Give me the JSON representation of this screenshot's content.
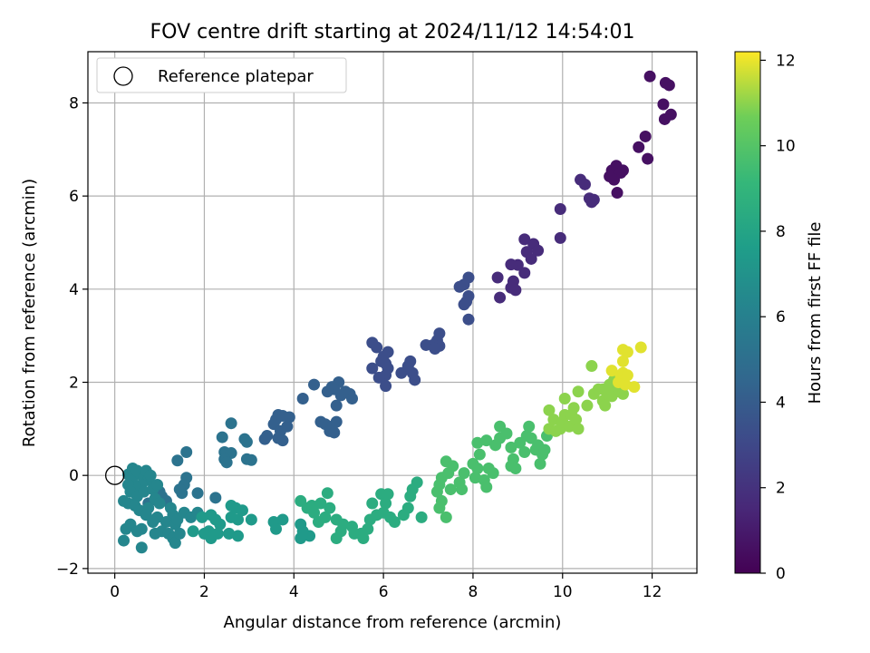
{
  "chart_data": {
    "type": "scatter",
    "title": "FOV centre drift starting at 2024/11/12 14:54:01",
    "xlabel": "Angular distance from reference (arcmin)",
    "ylabel": "Rotation from reference (arcmin)",
    "xlim": [
      -0.6,
      13.0
    ],
    "ylim": [
      -2.1,
      9.1
    ],
    "xticks": [
      0,
      2,
      4,
      6,
      8,
      10,
      12
    ],
    "yticks": [
      -2,
      0,
      2,
      4,
      6,
      8
    ],
    "grid": true,
    "legend": {
      "position": "top-left",
      "entries": [
        "Reference platepar"
      ]
    },
    "reference_point": {
      "x": 0,
      "y": 0
    },
    "colorbar": {
      "label": "Hours from first FF file",
      "colormap": "viridis",
      "range": [
        0,
        12.2
      ],
      "ticks": [
        0,
        2,
        4,
        6,
        8,
        10,
        12
      ]
    },
    "series": [
      {
        "points": [
          [
            11.95,
            8.57
          ],
          [
            12.3,
            8.43
          ],
          [
            12.38,
            8.38
          ],
          [
            12.25,
            7.97
          ],
          [
            12.42,
            7.75
          ],
          [
            12.28,
            7.65
          ],
          [
            11.85,
            7.28
          ],
          [
            11.7,
            7.05
          ],
          [
            11.9,
            6.8
          ],
          [
            11.1,
            6.55
          ],
          [
            11.2,
            6.65
          ],
          [
            11.3,
            6.5
          ],
          [
            11.15,
            6.35
          ],
          [
            11.05,
            6.42
          ],
          [
            11.35,
            6.55
          ],
          [
            11.22,
            6.07
          ]
        ],
        "hours": 0.6
      },
      {
        "points": [
          [
            10.4,
            6.35
          ],
          [
            10.5,
            6.25
          ],
          [
            10.6,
            5.95
          ],
          [
            10.7,
            5.92
          ],
          [
            10.65,
            5.87
          ],
          [
            9.95,
            5.72
          ],
          [
            9.95,
            5.1
          ],
          [
            9.15,
            5.07
          ],
          [
            9.35,
            4.97
          ],
          [
            9.2,
            4.8
          ],
          [
            9.45,
            4.83
          ],
          [
            9.3,
            4.65
          ],
          [
            9.0,
            4.52
          ],
          [
            8.85,
            4.53
          ],
          [
            9.15,
            4.35
          ],
          [
            8.55,
            4.25
          ],
          [
            8.9,
            4.17
          ],
          [
            8.85,
            4.03
          ],
          [
            8.95,
            3.98
          ],
          [
            8.6,
            3.82
          ]
        ],
        "hours": 1.7
      },
      {
        "points": [
          [
            7.9,
            4.25
          ],
          [
            7.8,
            4.1
          ],
          [
            7.7,
            4.05
          ],
          [
            7.9,
            3.85
          ],
          [
            7.85,
            3.73
          ],
          [
            7.8,
            3.67
          ],
          [
            7.9,
            3.35
          ],
          [
            7.25,
            3.05
          ],
          [
            7.2,
            2.9
          ],
          [
            7.1,
            2.8
          ],
          [
            7.25,
            2.78
          ],
          [
            6.95,
            2.8
          ],
          [
            7.15,
            2.72
          ],
          [
            6.1,
            2.65
          ],
          [
            5.75,
            2.85
          ],
          [
            5.85,
            2.75
          ],
          [
            6.0,
            2.55
          ],
          [
            6.05,
            2.4
          ],
          [
            5.95,
            2.45
          ],
          [
            5.75,
            2.3
          ],
          [
            6.1,
            2.3
          ],
          [
            6.4,
            2.2
          ],
          [
            6.55,
            2.35
          ],
          [
            6.6,
            2.45
          ],
          [
            6.65,
            2.2
          ],
          [
            6.7,
            2.05
          ],
          [
            6.05,
            2.15
          ],
          [
            6.05,
            1.92
          ],
          [
            5.9,
            2.1
          ]
        ],
        "hours": 3.3
      },
      {
        "points": [
          [
            5.0,
            2.0
          ],
          [
            4.85,
            1.9
          ],
          [
            4.9,
            1.85
          ],
          [
            5.15,
            1.8
          ],
          [
            4.75,
            1.8
          ],
          [
            5.05,
            1.72
          ],
          [
            5.25,
            1.75
          ],
          [
            5.3,
            1.65
          ],
          [
            4.45,
            1.95
          ],
          [
            4.2,
            1.65
          ],
          [
            4.95,
            1.5
          ],
          [
            4.6,
            1.15
          ],
          [
            4.7,
            1.1
          ],
          [
            4.85,
            1.05
          ],
          [
            4.95,
            1.15
          ],
          [
            4.8,
            0.95
          ],
          [
            4.9,
            0.92
          ],
          [
            3.9,
            1.25
          ],
          [
            3.75,
            1.28
          ],
          [
            3.65,
            1.3
          ],
          [
            3.6,
            1.2
          ],
          [
            3.55,
            1.1
          ],
          [
            3.85,
            1.05
          ],
          [
            3.7,
            0.95
          ],
          [
            3.4,
            0.85
          ],
          [
            3.35,
            0.78
          ],
          [
            3.65,
            0.8
          ],
          [
            3.75,
            0.75
          ]
        ],
        "hours": 4.2
      },
      {
        "points": [
          [
            2.6,
            1.12
          ],
          [
            2.4,
            0.82
          ],
          [
            2.9,
            0.78
          ],
          [
            2.95,
            0.72
          ],
          [
            2.45,
            0.5
          ],
          [
            2.6,
            0.48
          ],
          [
            2.45,
            0.35
          ],
          [
            2.5,
            0.28
          ],
          [
            2.95,
            0.35
          ],
          [
            3.05,
            0.33
          ],
          [
            1.6,
            0.5
          ],
          [
            1.4,
            0.32
          ],
          [
            1.6,
            -0.05
          ],
          [
            1.55,
            -0.2
          ],
          [
            1.45,
            -0.3
          ],
          [
            1.5,
            -0.38
          ],
          [
            1.85,
            -0.38
          ],
          [
            2.25,
            -0.48
          ],
          [
            1.05,
            -0.45
          ],
          [
            0.75,
            -0.6
          ],
          [
            1.15,
            -0.55
          ],
          [
            1.0,
            -0.35
          ]
        ],
        "hours": 5.2
      },
      {
        "points": [
          [
            0.3,
            0.02
          ],
          [
            0.4,
            -0.05
          ],
          [
            0.55,
            0.05
          ],
          [
            0.4,
            0.15
          ],
          [
            0.5,
            0.1
          ],
          [
            0.65,
            -0.05
          ],
          [
            0.7,
            0.1
          ],
          [
            0.75,
            -0.1
          ],
          [
            0.8,
            0.0
          ],
          [
            0.6,
            -0.2
          ],
          [
            0.45,
            -0.25
          ],
          [
            0.3,
            -0.2
          ],
          [
            0.35,
            -0.35
          ],
          [
            0.5,
            -0.45
          ],
          [
            0.65,
            -0.35
          ],
          [
            0.85,
            -0.3
          ],
          [
            0.95,
            -0.2
          ],
          [
            0.2,
            -0.55
          ],
          [
            0.3,
            -0.6
          ],
          [
            0.45,
            -0.65
          ],
          [
            0.75,
            -0.7
          ],
          [
            0.9,
            -0.5
          ],
          [
            1.0,
            -0.6
          ],
          [
            0.55,
            -0.75
          ],
          [
            0.7,
            -0.85
          ],
          [
            0.95,
            -0.9
          ],
          [
            0.35,
            -1.05
          ],
          [
            0.6,
            -1.15
          ],
          [
            0.5,
            -1.2
          ],
          [
            0.25,
            -1.15
          ],
          [
            0.2,
            -1.4
          ],
          [
            0.6,
            -1.55
          ],
          [
            0.85,
            -1.0
          ],
          [
            1.25,
            -0.7
          ],
          [
            1.3,
            -0.85
          ],
          [
            1.15,
            -1.0
          ],
          [
            1.35,
            -1.05
          ],
          [
            1.4,
            -0.95
          ],
          [
            1.55,
            -0.8
          ],
          [
            1.05,
            -1.2
          ],
          [
            1.2,
            -1.25
          ],
          [
            1.3,
            -1.35
          ],
          [
            1.35,
            -1.45
          ],
          [
            1.45,
            -1.25
          ],
          [
            0.9,
            -1.25
          ],
          [
            1.7,
            -0.9
          ],
          [
            1.85,
            -0.8
          ]
        ],
        "hours": 6.3
      },
      {
        "points": [
          [
            1.75,
            -1.2
          ],
          [
            1.95,
            -0.9
          ],
          [
            2.15,
            -0.85
          ],
          [
            2.25,
            -0.95
          ],
          [
            2.1,
            -1.2
          ],
          [
            2.0,
            -1.25
          ],
          [
            2.15,
            -1.35
          ],
          [
            2.3,
            -1.25
          ],
          [
            2.35,
            -1.05
          ],
          [
            2.6,
            -0.9
          ],
          [
            2.75,
            -0.95
          ],
          [
            2.55,
            -1.25
          ],
          [
            2.75,
            -1.3
          ],
          [
            2.6,
            -0.65
          ],
          [
            2.7,
            -0.7
          ],
          [
            2.85,
            -0.75
          ],
          [
            3.05,
            -0.95
          ],
          [
            3.55,
            -1.0
          ],
          [
            3.6,
            -1.15
          ],
          [
            3.75,
            -0.95
          ],
          [
            4.15,
            -1.05
          ],
          [
            4.15,
            -1.35
          ],
          [
            4.2,
            -1.2
          ],
          [
            4.35,
            -1.3
          ]
        ],
        "hours": 7.4
      },
      {
        "points": [
          [
            4.15,
            -0.55
          ],
          [
            4.3,
            -0.7
          ],
          [
            4.4,
            -0.65
          ],
          [
            4.45,
            -0.8
          ],
          [
            4.6,
            -0.6
          ],
          [
            4.7,
            -0.9
          ],
          [
            4.55,
            -1.0
          ],
          [
            4.8,
            -0.7
          ],
          [
            4.75,
            -0.38
          ],
          [
            4.95,
            -0.95
          ],
          [
            5.1,
            -1.05
          ],
          [
            5.05,
            -1.2
          ],
          [
            4.95,
            -1.35
          ],
          [
            5.3,
            -1.1
          ],
          [
            5.35,
            -1.25
          ],
          [
            5.5,
            -1.25
          ],
          [
            5.55,
            -1.35
          ],
          [
            5.65,
            -1.15
          ],
          [
            5.7,
            -0.95
          ],
          [
            5.75,
            -0.6
          ],
          [
            5.85,
            -0.85
          ],
          [
            5.95,
            -0.4
          ],
          [
            6.05,
            -0.6
          ],
          [
            6.1,
            -0.4
          ],
          [
            6.0,
            -0.8
          ],
          [
            6.15,
            -0.9
          ],
          [
            6.25,
            -1.0
          ],
          [
            6.45,
            -0.85
          ],
          [
            6.55,
            -0.7
          ],
          [
            6.6,
            -0.45
          ],
          [
            6.65,
            -0.3
          ],
          [
            6.75,
            -0.15
          ],
          [
            6.85,
            -0.9
          ]
        ],
        "hours": 8.5
      },
      {
        "points": [
          [
            7.2,
            -0.35
          ],
          [
            7.3,
            -0.55
          ],
          [
            7.25,
            -0.7
          ],
          [
            7.4,
            -0.9
          ],
          [
            7.25,
            -0.2
          ],
          [
            7.3,
            -0.05
          ],
          [
            7.4,
            0.3
          ],
          [
            7.55,
            0.2
          ],
          [
            7.45,
            0.05
          ],
          [
            7.5,
            -0.3
          ],
          [
            7.7,
            -0.15
          ],
          [
            7.75,
            -0.3
          ],
          [
            7.8,
            0.05
          ],
          [
            8.0,
            0.25
          ],
          [
            8.1,
            0.15
          ],
          [
            8.05,
            -0.05
          ],
          [
            8.25,
            -0.1
          ],
          [
            8.3,
            -0.25
          ],
          [
            8.35,
            0.15
          ],
          [
            8.45,
            0.05
          ],
          [
            8.15,
            0.45
          ],
          [
            8.1,
            0.7
          ],
          [
            8.3,
            0.75
          ],
          [
            8.5,
            0.65
          ],
          [
            8.6,
            0.8
          ],
          [
            8.6,
            1.05
          ],
          [
            8.75,
            0.9
          ],
          [
            8.85,
            0.6
          ],
          [
            8.9,
            0.35
          ],
          [
            8.85,
            0.2
          ],
          [
            8.95,
            0.15
          ],
          [
            9.05,
            0.7
          ],
          [
            9.15,
            0.5
          ],
          [
            9.2,
            0.85
          ],
          [
            9.25,
            1.05
          ],
          [
            9.3,
            0.8
          ],
          [
            9.4,
            0.55
          ],
          [
            9.45,
            0.65
          ],
          [
            9.5,
            0.25
          ],
          [
            9.55,
            0.45
          ],
          [
            9.6,
            0.55
          ],
          [
            9.65,
            0.85
          ]
        ],
        "hours": 9.7
      },
      {
        "points": [
          [
            9.7,
            1.0
          ],
          [
            9.7,
            1.4
          ],
          [
            9.8,
            1.2
          ],
          [
            9.85,
            0.95
          ],
          [
            9.95,
            1.0
          ],
          [
            10.0,
            1.15
          ],
          [
            10.05,
            1.3
          ],
          [
            10.05,
            1.65
          ],
          [
            10.15,
            1.05
          ],
          [
            10.2,
            1.3
          ],
          [
            10.25,
            1.45
          ],
          [
            10.3,
            1.2
          ],
          [
            10.35,
            1.0
          ],
          [
            10.35,
            1.8
          ],
          [
            10.55,
            1.5
          ],
          [
            10.65,
            2.35
          ],
          [
            10.7,
            1.75
          ],
          [
            10.8,
            1.85
          ],
          [
            10.9,
            1.6
          ],
          [
            10.9,
            1.85
          ],
          [
            10.95,
            1.5
          ],
          [
            11.0,
            1.75
          ],
          [
            11.05,
            1.95
          ],
          [
            11.1,
            1.7
          ],
          [
            11.15,
            2.05
          ],
          [
            11.2,
            1.8
          ],
          [
            11.25,
            1.85
          ],
          [
            11.3,
            1.95
          ],
          [
            11.35,
            1.75
          ]
        ],
        "hours": 11.0
      },
      {
        "points": [
          [
            11.1,
            2.25
          ],
          [
            11.25,
            2.0
          ],
          [
            11.3,
            2.15
          ],
          [
            11.35,
            2.2
          ],
          [
            11.4,
            1.95
          ],
          [
            11.45,
            2.15
          ],
          [
            11.35,
            2.45
          ],
          [
            11.35,
            2.7
          ],
          [
            11.45,
            2.65
          ],
          [
            11.6,
            1.9
          ],
          [
            11.75,
            2.75
          ]
        ],
        "hours": 11.9
      }
    ]
  }
}
